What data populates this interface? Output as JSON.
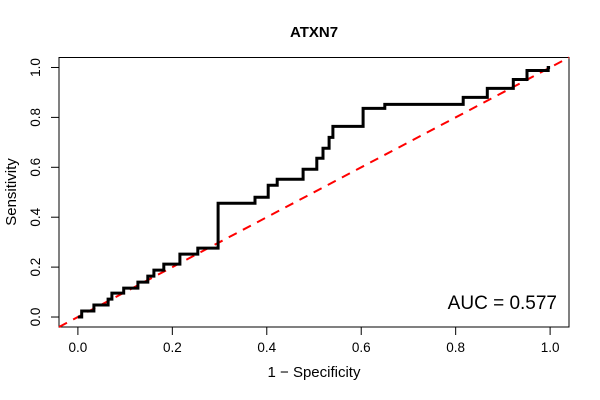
{
  "background_color": "#FFFFFF",
  "frame_color": "#000000",
  "text_color": "#000000",
  "chart_data": {
    "type": "line",
    "chart_kind": "roc-curve",
    "title": "ATXN7",
    "xlabel": "1 − Specificity",
    "ylabel": "Sensitivity",
    "xlim": [
      -0.04,
      1.04
    ],
    "ylim": [
      -0.04,
      1.04
    ],
    "xtick_values": [
      0.0,
      0.2,
      0.4,
      0.6,
      0.8,
      1.0
    ],
    "xtick_labels": [
      "0.0",
      "0.2",
      "0.4",
      "0.6",
      "0.8",
      "1.0"
    ],
    "ytick_values": [
      0.0,
      0.2,
      0.4,
      0.6,
      0.8,
      1.0
    ],
    "ytick_labels": [
      "0.0",
      "0.2",
      "0.4",
      "0.6",
      "0.8",
      "1.0"
    ],
    "grid": false,
    "legend": "none",
    "series": [
      {
        "name": "ROC curve",
        "style": "step",
        "color": "#000000",
        "line_width": 3,
        "points": [
          [
            0.0,
            0.0
          ],
          [
            0.008,
            0.0
          ],
          [
            0.008,
            0.024
          ],
          [
            0.034,
            0.024
          ],
          [
            0.034,
            0.048
          ],
          [
            0.064,
            0.048
          ],
          [
            0.064,
            0.072
          ],
          [
            0.072,
            0.072
          ],
          [
            0.072,
            0.096
          ],
          [
            0.097,
            0.096
          ],
          [
            0.097,
            0.116
          ],
          [
            0.127,
            0.116
          ],
          [
            0.127,
            0.14
          ],
          [
            0.148,
            0.14
          ],
          [
            0.148,
            0.164
          ],
          [
            0.161,
            0.164
          ],
          [
            0.161,
            0.188
          ],
          [
            0.182,
            0.188
          ],
          [
            0.182,
            0.212
          ],
          [
            0.216,
            0.212
          ],
          [
            0.216,
            0.252
          ],
          [
            0.254,
            0.252
          ],
          [
            0.254,
            0.276
          ],
          [
            0.297,
            0.276
          ],
          [
            0.297,
            0.456
          ],
          [
            0.375,
            0.456
          ],
          [
            0.375,
            0.48
          ],
          [
            0.403,
            0.48
          ],
          [
            0.403,
            0.528
          ],
          [
            0.422,
            0.528
          ],
          [
            0.422,
            0.552
          ],
          [
            0.477,
            0.552
          ],
          [
            0.477,
            0.592
          ],
          [
            0.506,
            0.592
          ],
          [
            0.506,
            0.636
          ],
          [
            0.519,
            0.636
          ],
          [
            0.519,
            0.676
          ],
          [
            0.532,
            0.676
          ],
          [
            0.532,
            0.72
          ],
          [
            0.54,
            0.72
          ],
          [
            0.54,
            0.764
          ],
          [
            0.604,
            0.764
          ],
          [
            0.604,
            0.836
          ],
          [
            0.65,
            0.836
          ],
          [
            0.65,
            0.852
          ],
          [
            0.816,
            0.852
          ],
          [
            0.816,
            0.88
          ],
          [
            0.867,
            0.88
          ],
          [
            0.867,
            0.916
          ],
          [
            0.922,
            0.916
          ],
          [
            0.922,
            0.952
          ],
          [
            0.951,
            0.952
          ],
          [
            0.951,
            0.988
          ],
          [
            0.996,
            0.988
          ],
          [
            0.996,
            1.0
          ],
          [
            1.0,
            1.0
          ]
        ]
      },
      {
        "name": "chance diagonal",
        "style": "dashed",
        "color": "#FF0000",
        "line_width": 2,
        "points": [
          [
            -0.04,
            -0.04
          ],
          [
            1.04,
            1.04
          ]
        ]
      }
    ],
    "annotations": [
      {
        "text": "AUC = 0.577",
        "value": 0.577,
        "position": "bottom-right"
      }
    ]
  }
}
